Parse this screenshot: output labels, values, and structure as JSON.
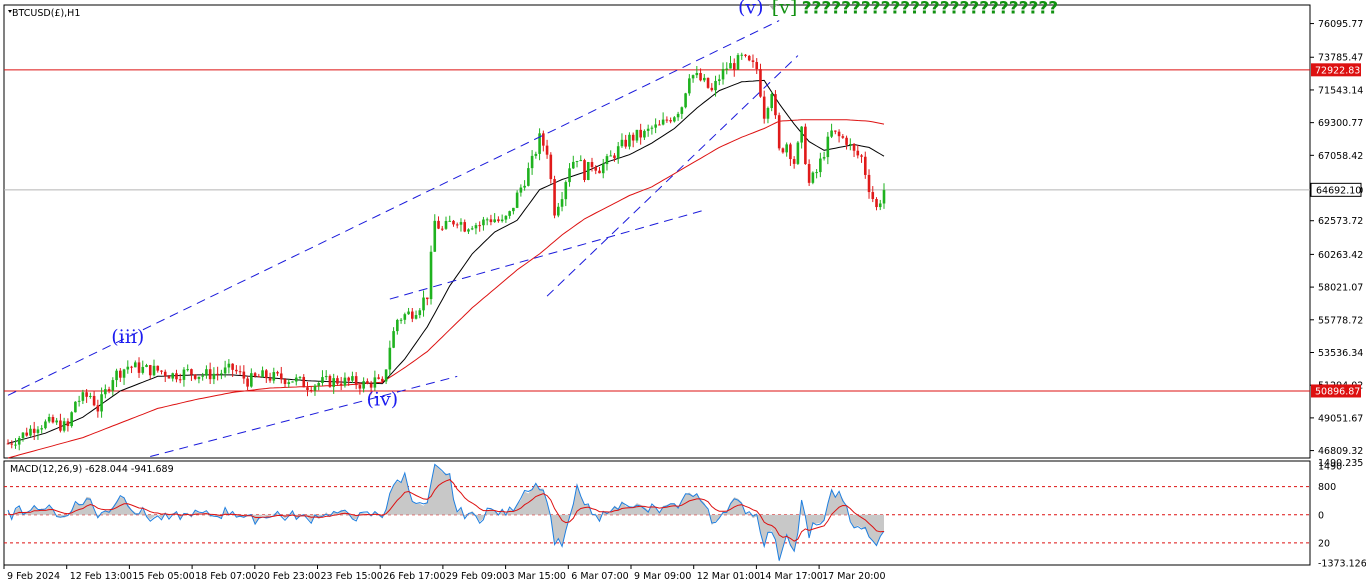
{
  "symbol_title": "BTCUSD(£),H1",
  "macd_title": "MACD(12,26,9) -628.044 -941.689",
  "colors": {
    "bull_candle": "#1fb21f",
    "bear_candle": "#e01a1a",
    "ma_fast": "#000000",
    "ma_slow": "#dd1111",
    "channel": "#1a1adb",
    "hline": "#dd1111",
    "macd_hist": "#c8c8c8",
    "macd_line": "#1e7fe0",
    "macd_signal": "#dd1111"
  },
  "chart_data": {
    "type": "candlestick",
    "price_axis_ticks": [
      "76095.77",
      "73785.47",
      "71543.14",
      "69300.77",
      "67058.42",
      "64692.10",
      "62573.72",
      "60263.42",
      "58021.07",
      "55778.72",
      "53536.34",
      "51294.02",
      "49051.67",
      "46809.32"
    ],
    "price_axis_values": [
      76095.77,
      73785.47,
      71543.14,
      69300.77,
      67058.42,
      64692.1,
      62573.72,
      60263.42,
      58021.07,
      55778.72,
      53536.34,
      51294.02,
      49051.67,
      46809.32
    ],
    "time_axis_ticks": [
      "9 Feb 2024",
      "12 Feb 13:00",
      "15 Feb 05:00",
      "18 Feb 07:00",
      "20 Feb 23:00",
      "23 Feb 15:00",
      "26 Feb 17:00",
      "29 Feb 09:00",
      "3 Mar 15:00",
      "6 Mar 07:00",
      "9 Mar 09:00",
      "12 Mar 01:00",
      "14 Mar 17:00",
      "17 Mar 20:00"
    ],
    "ylim": [
      46300,
      77300
    ],
    "current_price": {
      "label": "64692.10",
      "value": 64692.1
    },
    "horizontal_lines": [
      {
        "label": "72922.83",
        "value": 72922.83
      },
      {
        "label": "50896.87",
        "value": 50896.87
      }
    ],
    "wave_labels": [
      {
        "text": "(iii)",
        "at_index": 32,
        "price": 54200,
        "color": "blue"
      },
      {
        "text": "(iv)",
        "at_index": 100,
        "price": 49900,
        "color": "blue"
      },
      {
        "text": "(v)",
        "at_index": 195,
        "price": 76800,
        "color": "blue"
      },
      {
        "text": "[v]",
        "at_index": 204,
        "price": 76800,
        "color": "green"
      }
    ],
    "annotation": "??????????????????????????",
    "price_path": [
      [
        0,
        47300
      ],
      [
        4,
        47900
      ],
      [
        8,
        48600
      ],
      [
        12,
        48700
      ],
      [
        16,
        48400
      ],
      [
        18,
        50200
      ],
      [
        22,
        50600
      ],
      [
        24,
        49700
      ],
      [
        28,
        51900
      ],
      [
        32,
        52600
      ],
      [
        36,
        52400
      ],
      [
        40,
        52300
      ],
      [
        44,
        52000
      ],
      [
        48,
        52200
      ],
      [
        52,
        52000
      ],
      [
        56,
        52100
      ],
      [
        60,
        52400
      ],
      [
        64,
        51600
      ],
      [
        68,
        51900
      ],
      [
        72,
        51800
      ],
      [
        76,
        51700
      ],
      [
        80,
        51300
      ],
      [
        84,
        51500
      ],
      [
        88,
        51600
      ],
      [
        92,
        51500
      ],
      [
        96,
        51300
      ],
      [
        98,
        51600
      ],
      [
        100,
        51200
      ],
      [
        102,
        54000
      ],
      [
        104,
        55800
      ],
      [
        106,
        56100
      ],
      [
        108,
        56300
      ],
      [
        110,
        56800
      ],
      [
        112,
        57500
      ],
      [
        114,
        62500
      ],
      [
        116,
        61900
      ],
      [
        118,
        62400
      ],
      [
        120,
        62700
      ],
      [
        122,
        62200
      ],
      [
        124,
        62400
      ],
      [
        126,
        62300
      ],
      [
        128,
        62700
      ],
      [
        130,
        62700
      ],
      [
        132,
        62400
      ],
      [
        134,
        63000
      ],
      [
        136,
        64300
      ],
      [
        138,
        65400
      ],
      [
        140,
        66600
      ],
      [
        142,
        68200
      ],
      [
        144,
        67400
      ],
      [
        146,
        63300
      ],
      [
        148,
        64500
      ],
      [
        150,
        66400
      ],
      [
        152,
        67000
      ],
      [
        154,
        65800
      ],
      [
        156,
        66500
      ],
      [
        158,
        66200
      ],
      [
        160,
        66600
      ],
      [
        162,
        67200
      ],
      [
        164,
        67700
      ],
      [
        166,
        68200
      ],
      [
        168,
        68400
      ],
      [
        170,
        68500
      ],
      [
        172,
        68900
      ],
      [
        174,
        69000
      ],
      [
        176,
        69500
      ],
      [
        178,
        69900
      ],
      [
        180,
        70500
      ],
      [
        182,
        72700
      ],
      [
        184,
        72400
      ],
      [
        186,
        72000
      ],
      [
        188,
        71400
      ],
      [
        190,
        72400
      ],
      [
        192,
        73100
      ],
      [
        194,
        73300
      ],
      [
        196,
        73700
      ],
      [
        198,
        73300
      ],
      [
        200,
        73000
      ],
      [
        202,
        69900
      ],
      [
        204,
        71600
      ],
      [
        206,
        67300
      ],
      [
        208,
        67900
      ],
      [
        210,
        66600
      ],
      [
        212,
        68600
      ],
      [
        214,
        65100
      ],
      [
        216,
        65900
      ],
      [
        218,
        67300
      ],
      [
        220,
        68600
      ],
      [
        222,
        68300
      ],
      [
        224,
        68100
      ],
      [
        226,
        67200
      ],
      [
        228,
        66900
      ],
      [
        230,
        64900
      ],
      [
        232,
        63400
      ],
      [
        234,
        64700
      ]
    ],
    "ma_fast": [
      [
        0,
        47300
      ],
      [
        10,
        48000
      ],
      [
        20,
        49100
      ],
      [
        30,
        50900
      ],
      [
        40,
        51900
      ],
      [
        50,
        52000
      ],
      [
        60,
        52000
      ],
      [
        70,
        51800
      ],
      [
        80,
        51600
      ],
      [
        90,
        51500
      ],
      [
        100,
        51400
      ],
      [
        106,
        53100
      ],
      [
        112,
        55300
      ],
      [
        118,
        58100
      ],
      [
        124,
        60300
      ],
      [
        130,
        61800
      ],
      [
        136,
        62600
      ],
      [
        142,
        64700
      ],
      [
        148,
        65400
      ],
      [
        154,
        65900
      ],
      [
        160,
        66600
      ],
      [
        166,
        67100
      ],
      [
        172,
        67900
      ],
      [
        178,
        68900
      ],
      [
        184,
        70300
      ],
      [
        190,
        71500
      ],
      [
        196,
        72100
      ],
      [
        202,
        72200
      ],
      [
        206,
        70600
      ],
      [
        210,
        69200
      ],
      [
        214,
        68000
      ],
      [
        218,
        67400
      ],
      [
        222,
        67600
      ],
      [
        226,
        67800
      ],
      [
        230,
        67600
      ],
      [
        234,
        67000
      ]
    ],
    "ma_slow": [
      [
        0,
        46300
      ],
      [
        10,
        47000
      ],
      [
        20,
        47700
      ],
      [
        30,
        48700
      ],
      [
        40,
        49700
      ],
      [
        50,
        50300
      ],
      [
        60,
        50800
      ],
      [
        70,
        51100
      ],
      [
        80,
        51200
      ],
      [
        90,
        51300
      ],
      [
        100,
        51500
      ],
      [
        106,
        52500
      ],
      [
        112,
        53600
      ],
      [
        118,
        55100
      ],
      [
        124,
        56600
      ],
      [
        130,
        57900
      ],
      [
        136,
        59200
      ],
      [
        142,
        60300
      ],
      [
        148,
        61600
      ],
      [
        154,
        62700
      ],
      [
        160,
        63500
      ],
      [
        166,
        64300
      ],
      [
        172,
        64900
      ],
      [
        178,
        65800
      ],
      [
        184,
        66700
      ],
      [
        190,
        67600
      ],
      [
        196,
        68300
      ],
      [
        202,
        68900
      ],
      [
        206,
        69400
      ],
      [
        212,
        69500
      ],
      [
        218,
        69500
      ],
      [
        224,
        69500
      ],
      [
        230,
        69400
      ],
      [
        234,
        69200
      ]
    ],
    "channel_lines": [
      {
        "from": [
          0,
          50600
        ],
        "to": [
          206,
          76300
        ]
      },
      {
        "from": [
          38,
          46400
        ],
        "to": [
          120,
          51900
        ]
      },
      {
        "from": [
          102,
          57200
        ],
        "to": [
          186,
          63300
        ]
      },
      {
        "from": [
          144,
          57400
        ],
        "to": [
          211,
          73900
        ]
      }
    ],
    "macd": {
      "params": "MACD(12,26,9)",
      "main": -628.044,
      "signal": -941.689,
      "axis_ticks": [
        "1490.235",
        "1490",
        "800",
        "0",
        "20",
        "-1373.126"
      ],
      "levels": {
        "upper": 800,
        "middle": 0,
        "lower": -800
      },
      "ylim": [
        -1400,
        1500
      ]
    }
  }
}
